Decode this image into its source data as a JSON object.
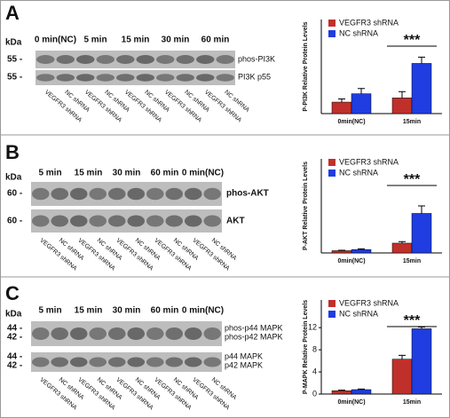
{
  "blots": [
    {
      "label": "A",
      "kda": "kDa",
      "groups": [
        "0 min(NC)",
        "5 min",
        "15 min",
        "30 min",
        "60 min"
      ],
      "markers": [
        "55 -",
        "55 -"
      ],
      "bands": [
        "phos-PI3K",
        "PI3K p55"
      ],
      "lanes": [
        "VEGFR3 shRNA",
        "NC shRNA",
        "VEGFR3 shRNA",
        "NC shRNA",
        "VEGFR3 shRNA",
        "NC shRNA",
        "VEGFR3 shRNA",
        "NC shRNA",
        "VEGFR3 shRNA",
        "NC shRNA"
      ]
    },
    {
      "label": "B",
      "kda": "kDa",
      "groups": [
        "5 min",
        "15 min",
        "30 min",
        "60 min",
        "0 min(NC)"
      ],
      "markers": [
        "60 -",
        "60 -"
      ],
      "bands": [
        "phos-AKT",
        "AKT"
      ],
      "lanes": [
        "VEGFR3 shRNA",
        "NC shRNA",
        "VEGFR3 shRNA",
        "NC shRNA",
        "VEGFR3 shRNA",
        "NC shRNA",
        "VEGFR3 shRNA",
        "NC shRNA",
        "VEGFR3 shRNA",
        "NC shRNA"
      ]
    },
    {
      "label": "C",
      "kda": "kDa",
      "groups": [
        "5 min",
        "15 min",
        "30 min",
        "60 min",
        "0 min(NC)"
      ],
      "markers": [
        "44 -",
        "42 -",
        "44 -",
        "42 -"
      ],
      "bands": [
        "phos-p44 MAPK",
        "phos-p42 MAPK",
        "p44 MAPK",
        "p42 MAPK"
      ],
      "lanes": [
        "VEGFR3 shRNA",
        "NC shRNA",
        "VEGFR3 shRNA",
        "NC shRNA",
        "VEGFR3 shRNA",
        "NC shRNA",
        "VEGFR3 shRNA",
        "NC shRNA",
        "VEGFR3 shRNA",
        "NC shRNA"
      ]
    }
  ],
  "chart_data": [
    {
      "type": "bar",
      "y_label": "P-PI3K Relative Protein Levels",
      "categories": [
        "0min(NC)",
        "15min"
      ],
      "ylim": [
        0,
        4.5
      ],
      "annotation": "***",
      "series": [
        {
          "name": "VEGFR3 shRNA",
          "color": "#c0302b",
          "values": [
            0.55,
            0.75
          ],
          "errors": [
            0.15,
            0.3
          ]
        },
        {
          "name": "NC shRNA",
          "color": "#1f3de0",
          "values": [
            0.95,
            2.4
          ],
          "errors": [
            0.25,
            0.3
          ]
        }
      ]
    },
    {
      "type": "bar",
      "y_label": "P-AKT Relative Protein Levels",
      "categories": [
        "0min(NC)",
        "15min"
      ],
      "ylim": [
        0,
        25
      ],
      "annotation": "***",
      "series": [
        {
          "name": "VEGFR3 shRNA",
          "color": "#c0302b",
          "values": [
            0.6,
            2.6
          ],
          "errors": [
            0.1,
            0.4
          ]
        },
        {
          "name": "NC shRNA",
          "color": "#1f3de0",
          "values": [
            0.9,
            10.5
          ],
          "errors": [
            0.2,
            2
          ]
        }
      ]
    },
    {
      "type": "bar",
      "y_label": "P-MAPK Relative Protein Levels",
      "categories": [
        "0min(NC)",
        "15min"
      ],
      "ylim": [
        0,
        17
      ],
      "yticks": [
        0,
        4,
        8,
        12
      ],
      "annotation": "***",
      "series": [
        {
          "name": "VEGFR3 shRNA",
          "color": "#c0302b",
          "values": [
            0.6,
            6.3
          ],
          "errors": [
            0.1,
            0.7
          ]
        },
        {
          "name": "NC shRNA",
          "color": "#1f3de0",
          "values": [
            0.8,
            11.8
          ],
          "errors": [
            0.1,
            0.3
          ]
        }
      ]
    }
  ]
}
